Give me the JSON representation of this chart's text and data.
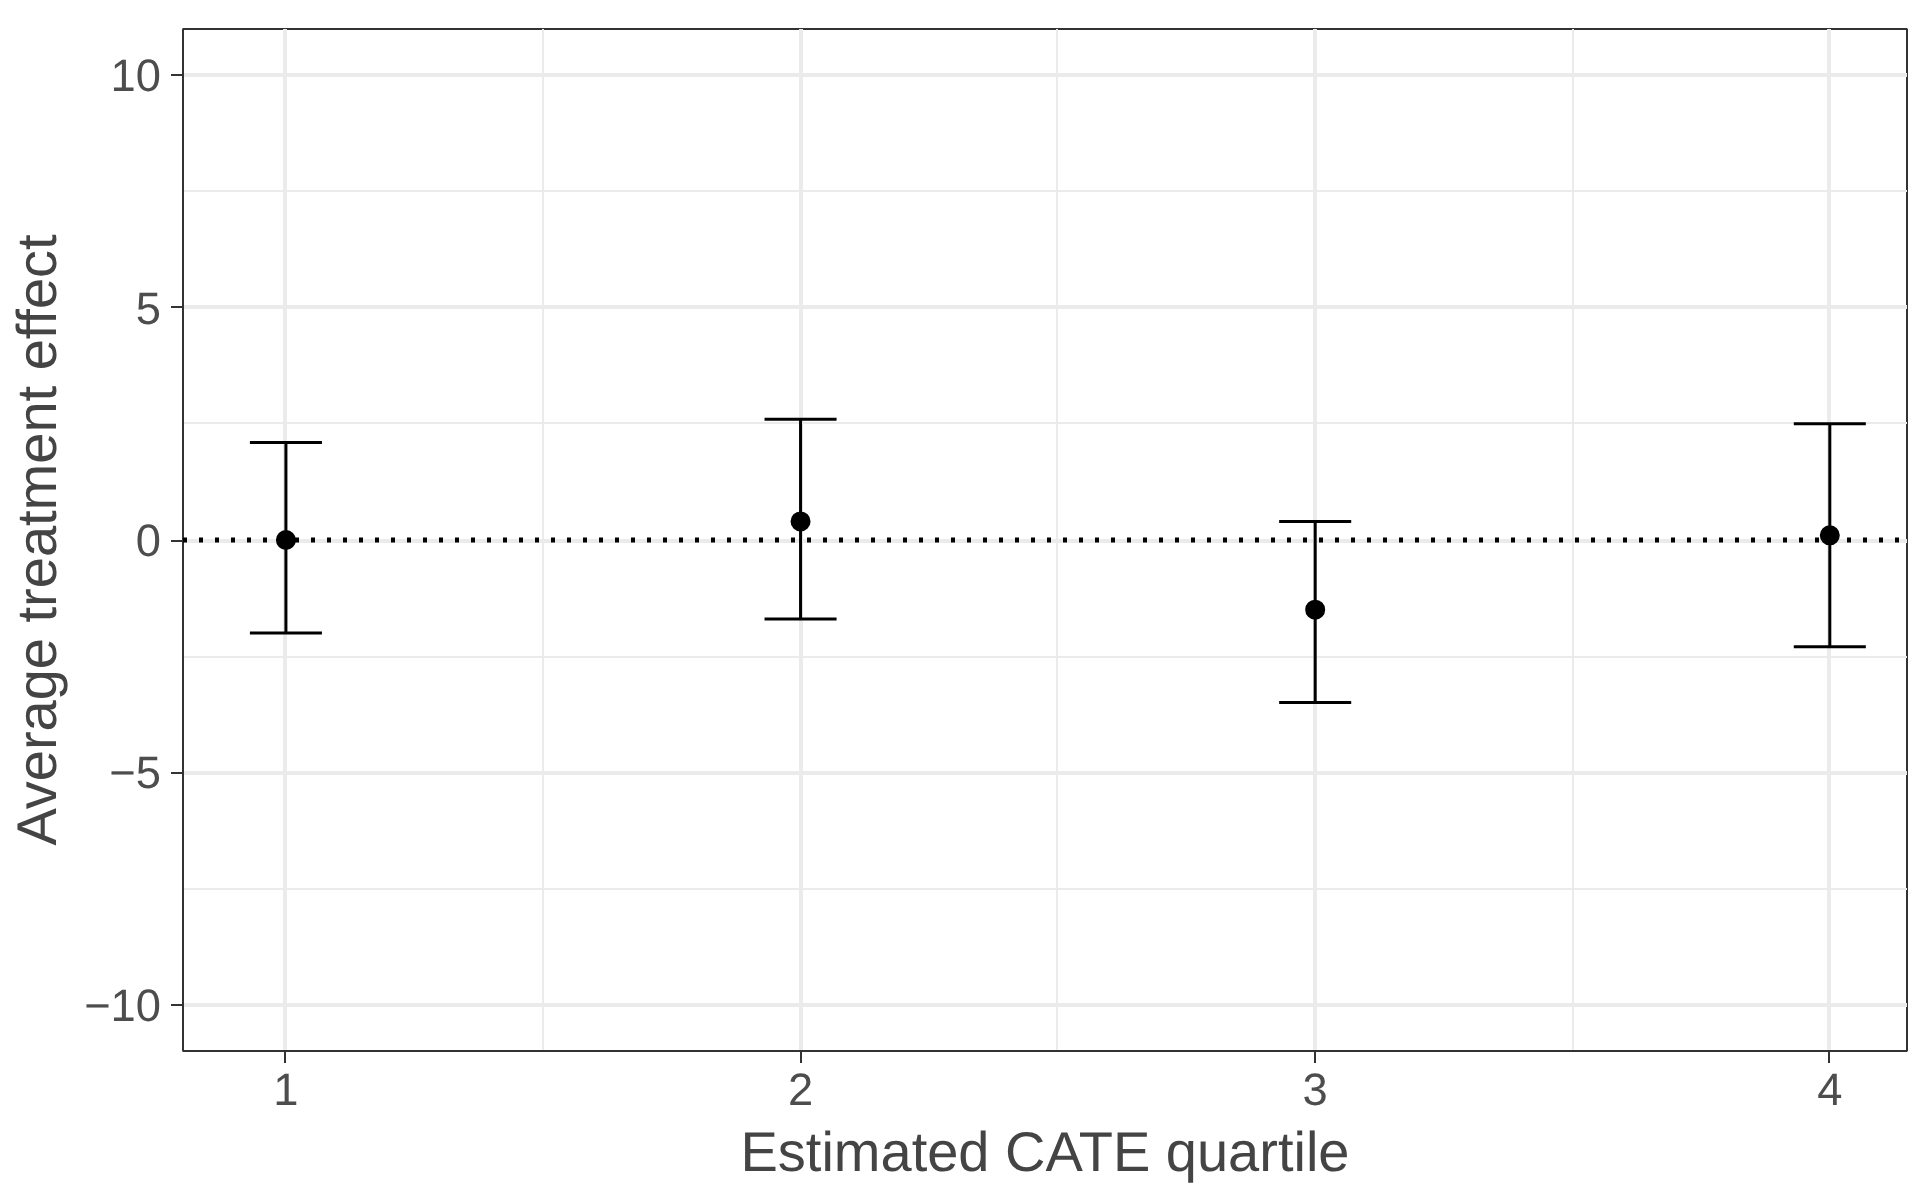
{
  "chart_data": {
    "type": "scatter",
    "xlabel": "Estimated CATE quartile",
    "ylabel": "Average treatment effect",
    "x": [
      1,
      2,
      3,
      4
    ],
    "values": [
      0.0,
      0.4,
      -1.5,
      0.1
    ],
    "color": "#000000",
    "errors": [
      [
        -2.0,
        2.1
      ],
      [
        -1.7,
        2.6
      ],
      [
        -3.5,
        0.4
      ],
      [
        -2.3,
        2.5
      ]
    ],
    "xlim": [
      0.8,
      4.15
    ],
    "xticks": [
      1,
      2,
      3,
      4
    ],
    "ylim": [
      -11,
      11
    ],
    "yticks": [
      -10,
      -5,
      0,
      5,
      10
    ],
    "ref_lines": [
      {
        "axis": "y",
        "value": 0,
        "line_style": "dotted",
        "color": "#000000"
      }
    ],
    "grid": true,
    "marker": "circle"
  }
}
